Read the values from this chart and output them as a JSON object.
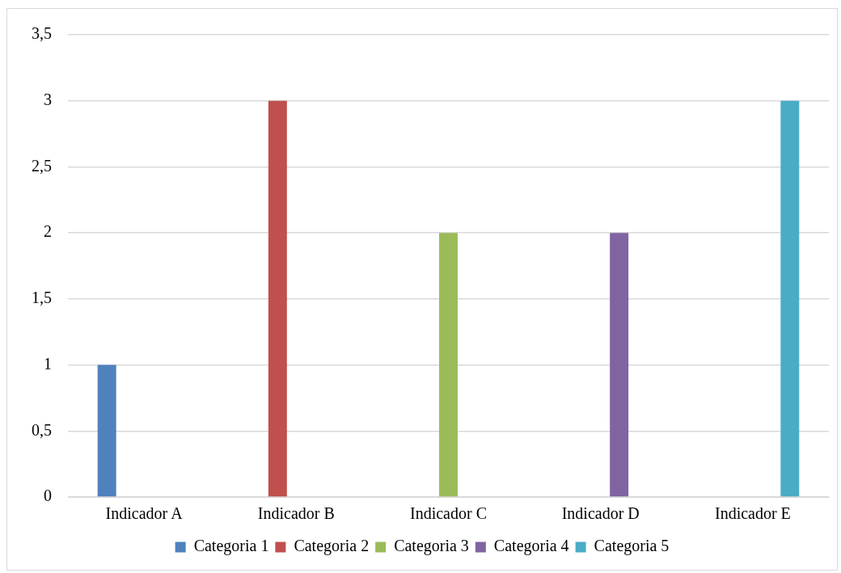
{
  "chart_data": {
    "type": "bar",
    "categories": [
      "Indicador A",
      "Indicador B",
      "Indicador C",
      "Indicador D",
      "Indicador E"
    ],
    "series": [
      {
        "name": "Categoria 1",
        "color": "#4f81bd",
        "values": [
          1,
          null,
          null,
          null,
          null
        ]
      },
      {
        "name": "Categoria 2",
        "color": "#c0504d",
        "values": [
          null,
          3,
          null,
          null,
          null
        ]
      },
      {
        "name": "Categoria 3",
        "color": "#9bbb59",
        "values": [
          null,
          null,
          2,
          null,
          null
        ]
      },
      {
        "name": "Categoria 4",
        "color": "#8064a2",
        "values": [
          null,
          null,
          null,
          2,
          null
        ]
      },
      {
        "name": "Categoria 5",
        "color": "#4bacc6",
        "values": [
          null,
          null,
          null,
          null,
          3
        ]
      }
    ],
    "ylim": [
      0,
      3.5
    ],
    "yticks": [
      {
        "value": 0,
        "label": "0"
      },
      {
        "value": 0.5,
        "label": "0,5"
      },
      {
        "value": 1,
        "label": "1"
      },
      {
        "value": 1.5,
        "label": "1,5"
      },
      {
        "value": 2,
        "label": "2"
      },
      {
        "value": 2.5,
        "label": "2,5"
      },
      {
        "value": 3,
        "label": "3"
      },
      {
        "value": 3.5,
        "label": "3,5"
      }
    ],
    "grid": "y",
    "legend": "bottom"
  }
}
